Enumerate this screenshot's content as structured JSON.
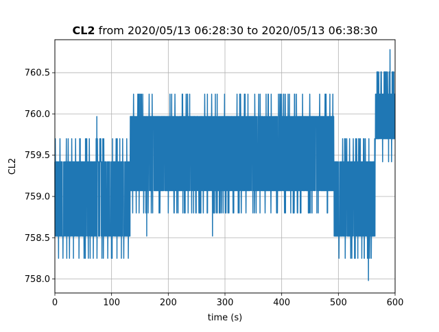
{
  "chart_data": {
    "type": "line",
    "title_bold": "CL2",
    "title_rest": " from 2020/05/13 06:28:30 to 2020/05/13 06:38:30",
    "xlabel": "time (s)",
    "ylabel": "CL2",
    "xlim": [
      0,
      600
    ],
    "ylim": [
      757.83,
      760.9
    ],
    "x_ticks": [
      0,
      100,
      200,
      300,
      400,
      500,
      600
    ],
    "y_ticks": [
      758.0,
      758.5,
      759.0,
      759.5,
      760.0,
      760.5
    ],
    "x_tick_labels": [
      "0",
      "100",
      "200",
      "300",
      "400",
      "500",
      "600"
    ],
    "y_tick_labels": [
      "758.0",
      "758.5",
      "759.0",
      "759.5",
      "760.0",
      "760.5"
    ],
    "grid": true,
    "line_color": "#1f77b4",
    "series": [
      {
        "segments": [
          {
            "x_start": 0,
            "x_end": 133,
            "dense_low": 758.52,
            "dense_high": 759.42,
            "spike_low": 758.25,
            "spike_high": 759.7
          },
          {
            "x_start": 133,
            "x_end": 492,
            "dense_low": 759.07,
            "dense_high": 759.97,
            "spike_low": 758.8,
            "spike_high": 760.24
          },
          {
            "x_start": 492,
            "x_end": 565,
            "dense_low": 758.52,
            "dense_high": 759.42,
            "spike_low": 758.25,
            "spike_high": 759.7
          },
          {
            "x_start": 565,
            "x_end": 600,
            "dense_low": 759.7,
            "dense_high": 760.24,
            "spike_low": 759.42,
            "spike_high": 760.51
          }
        ],
        "outliers": [
          {
            "x": 74,
            "y": 759.97
          },
          {
            "x": 553,
            "y": 757.98
          },
          {
            "x": 591,
            "y": 760.78
          },
          {
            "x": 278,
            "y": 758.52
          },
          {
            "x": 162,
            "y": 758.52
          },
          {
            "x": 512,
            "y": 758.25
          }
        ]
      }
    ]
  }
}
